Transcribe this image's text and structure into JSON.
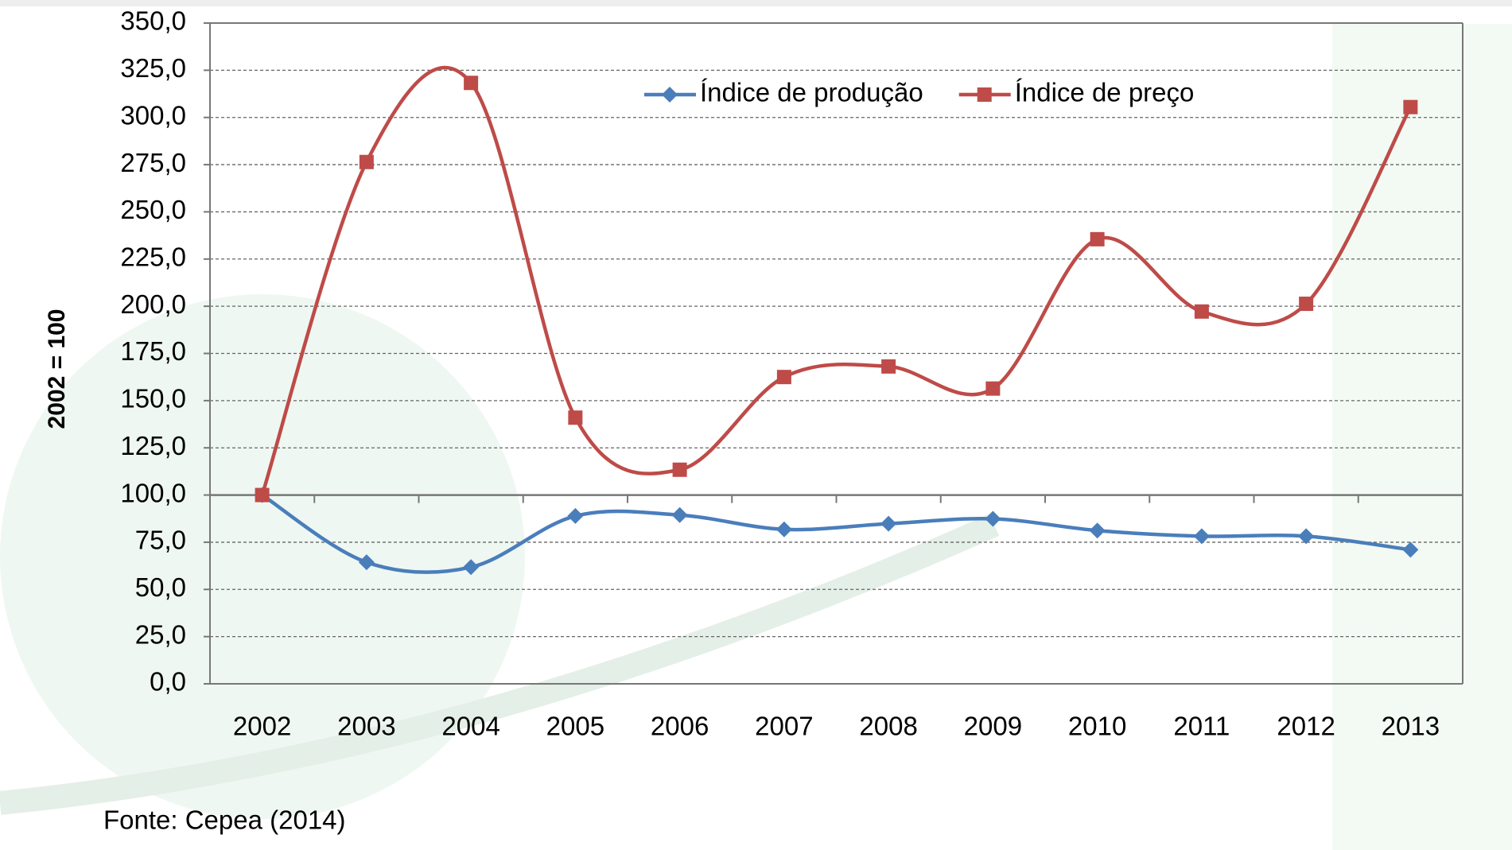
{
  "chart_data": {
    "type": "line",
    "y_label": "2002 = 100",
    "source": "Fonte: Cepea (2014)",
    "categories": [
      "2002",
      "2003",
      "2004",
      "2005",
      "2006",
      "2007",
      "2008",
      "2009",
      "2010",
      "2011",
      "2012",
      "2013"
    ],
    "series": [
      {
        "name": "Índice de produção",
        "color": "#4a7ebb",
        "marker": "diamond",
        "values": [
          100,
          64.4,
          61.8,
          88.9,
          89.4,
          81.8,
          84.8,
          87.4,
          81.2,
          78.2,
          78.2,
          71
        ]
      },
      {
        "name": "Índice de preço",
        "color": "#be4b48",
        "marker": "square",
        "values": [
          100,
          276.4,
          318.3,
          141,
          113.4,
          162.5,
          168.1,
          156.4,
          235.5,
          197.2,
          201.3,
          305.5
        ]
      }
    ],
    "ylim": [
      0,
      350
    ],
    "yticks": [
      {
        "value": 0,
        "label": "0,0"
      },
      {
        "value": 25,
        "label": "25,0"
      },
      {
        "value": 50,
        "label": "50,0"
      },
      {
        "value": 75,
        "label": "75,0"
      },
      {
        "value": 100,
        "label": "100,0"
      },
      {
        "value": 125,
        "label": "125,0"
      },
      {
        "value": 150,
        "label": "150,0"
      },
      {
        "value": 175,
        "label": "175,0"
      },
      {
        "value": 200,
        "label": "200,0"
      },
      {
        "value": 225,
        "label": "225,0"
      },
      {
        "value": 250,
        "label": "250,0"
      },
      {
        "value": 275,
        "label": "275,0"
      },
      {
        "value": 300,
        "label": "300,0"
      },
      {
        "value": 325,
        "label": "325,0"
      },
      {
        "value": 350,
        "label": "350,0"
      }
    ],
    "x_axis_at": 100,
    "grid": true,
    "smooth": true,
    "legend": "top"
  }
}
